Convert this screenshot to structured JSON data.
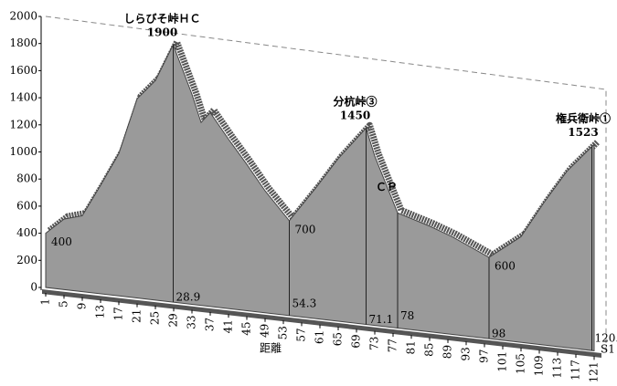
{
  "chart_data": {
    "type": "area",
    "xlabel": "距離",
    "end_label": "S1",
    "xlim": [
      1,
      122
    ],
    "ylim": [
      0,
      2000
    ],
    "xticks": [
      1,
      5,
      9,
      13,
      17,
      21,
      25,
      29,
      33,
      37,
      41,
      45,
      49,
      53,
      57,
      61,
      65,
      69,
      73,
      77,
      81,
      85,
      89,
      93,
      97,
      101,
      105,
      109,
      113,
      117,
      121
    ],
    "yticks": [
      0,
      200,
      400,
      600,
      800,
      1000,
      1200,
      1400,
      1600,
      1800,
      2000
    ],
    "color": "#9a9a9a",
    "series": [
      {
        "x": [
          1,
          5,
          9,
          13,
          17,
          21,
          25,
          28.9,
          33,
          35,
          37,
          41,
          45,
          49,
          54.3,
          60,
          65,
          71.1,
          73,
          78,
          85,
          90,
          98,
          105,
          110,
          115,
          121
        ],
        "values": [
          400,
          520,
          560,
          800,
          1050,
          1470,
          1620,
          1900,
          1550,
          1350,
          1430,
          1250,
          1080,
          900,
          700,
          960,
          1200,
          1450,
          1250,
          850,
          780,
          720,
          600,
          780,
          1050,
          1300,
          1523
        ],
        "point_names": [
          null,
          null,
          null,
          null,
          null,
          null,
          null,
          "しらびそ峠ＨＣ",
          null,
          null,
          null,
          null,
          null,
          null,
          null,
          null,
          null,
          "分杭峠③",
          null,
          "ＣＰ",
          null,
          null,
          null,
          null,
          null,
          null,
          "権兵衛峠①"
        ]
      }
    ],
    "distance_markers": [
      28.9,
      54.3,
      71.1,
      78,
      98,
      120.5
    ]
  }
}
